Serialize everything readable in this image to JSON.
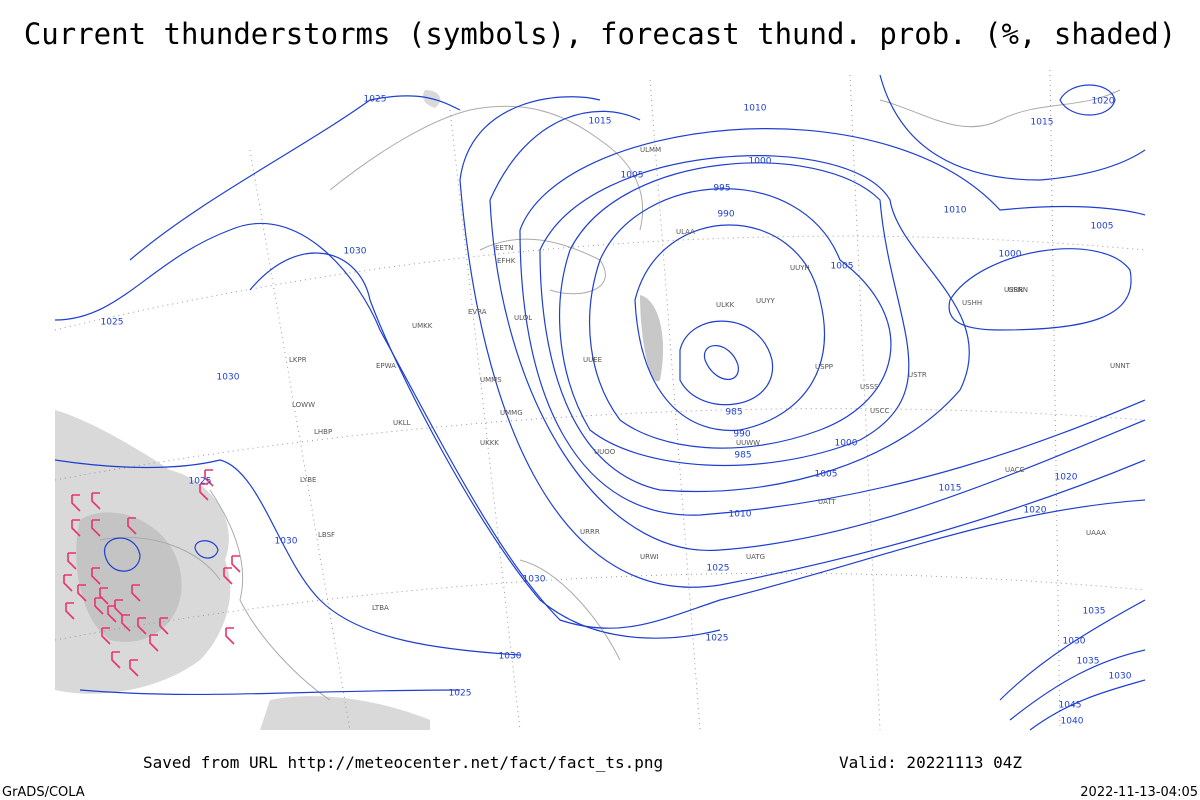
{
  "title": "Current thunderstorms (symbols), forecast thund. prob. (%, shaded)",
  "footer": {
    "source": "Saved from URL http://meteocenter.net/fact/fact_ts.png",
    "valid": "Valid: 20221113 04Z",
    "software": "GrADS/COLA",
    "timestamp": "2022-11-13-04:05"
  },
  "isobar_labels": [
    "1025",
    "1015",
    "1010",
    "1005",
    "1000",
    "995",
    "990",
    "1010",
    "1005",
    "1020",
    "1015",
    "1005",
    "1000",
    "1030",
    "1025",
    "1030",
    "1025",
    "1030",
    "985",
    "990",
    "985",
    "1000",
    "1005",
    "1010",
    "1015",
    "1020",
    "1025",
    "1020",
    "1030",
    "1030",
    "1025",
    "1035",
    "1030",
    "1035",
    "1030",
    "1045",
    "1040",
    "1025"
  ],
  "stations": [
    "ULMM",
    "ULAA",
    "ULKK",
    "UUYY",
    "EFHK",
    "EETN",
    "EVRA",
    "ULOL",
    "UMKK",
    "UUEE",
    "UMMS",
    "UMMG",
    "EPWA",
    "LKPR",
    "LOWW",
    "LHBP",
    "UKLL",
    "UKKK",
    "UUOO",
    "UUWW",
    "URRR",
    "UATT",
    "USSS",
    "USPP",
    "UACC",
    "UNNT",
    "USRR",
    "USNN",
    "USHH",
    "LYBE",
    "LBSF",
    "LTBA",
    "UATG",
    "URWI",
    "UUYH",
    "USCC",
    "USTR",
    "UAAA"
  ]
}
